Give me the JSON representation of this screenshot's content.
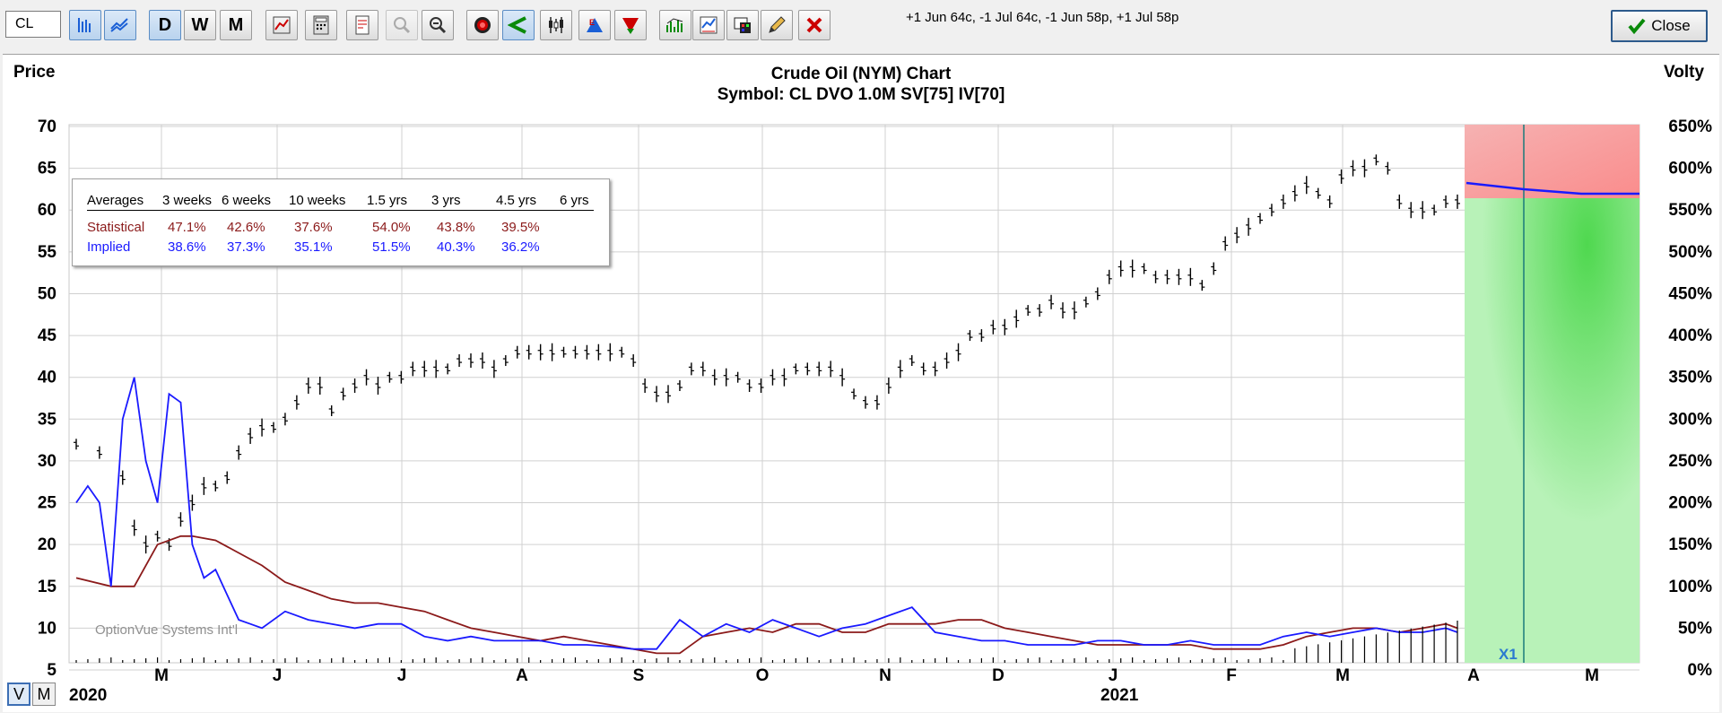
{
  "toolbar": {
    "symbol_value": "CL",
    "buttons": [
      {
        "id": "bars",
        "icon": "bar-chart-icon",
        "active": true
      },
      {
        "id": "lines",
        "icon": "line-chart-icon",
        "active": true
      },
      {
        "id": "daily",
        "label": "D",
        "active": true
      },
      {
        "id": "weekly",
        "label": "W"
      },
      {
        "id": "monthly",
        "label": "M"
      },
      {
        "id": "chart-settings",
        "icon": "chart-settings-icon"
      },
      {
        "id": "calc",
        "icon": "calculator-icon"
      },
      {
        "id": "report",
        "icon": "report-icon"
      },
      {
        "id": "zoom-in",
        "icon": "zoom-in-icon",
        "disabled": true
      },
      {
        "id": "zoom-out",
        "icon": "zoom-out-icon"
      },
      {
        "id": "target",
        "icon": "target-icon"
      },
      {
        "id": "angle",
        "icon": "angle-icon",
        "active": true
      },
      {
        "id": "candles",
        "icon": "candlestick-icon"
      },
      {
        "id": "earnings",
        "icon": "earnings-icon"
      },
      {
        "id": "dividend",
        "icon": "dividend-icon"
      },
      {
        "id": "volume",
        "icon": "volume-icon"
      },
      {
        "id": "study",
        "icon": "study-icon"
      },
      {
        "id": "paint",
        "icon": "paint-icon"
      },
      {
        "id": "pencil",
        "icon": "pencil-icon"
      },
      {
        "id": "delete",
        "icon": "delete-icon"
      }
    ],
    "positions_text": "+1 Jun 64c, -1 Jul 64c, -1 Jun 58p, +1 Jul 58p",
    "close_label": "Close"
  },
  "chart": {
    "title": "Crude Oil (NYM) Chart",
    "subtitle": "Symbol: CL  DVO 1.0M  SV[75]  IV[70]",
    "left_axis_title": "Price",
    "right_axis_title": "Volty",
    "watermark": "OptionVue Systems Int'l",
    "forecast_marker": "X1",
    "year_labels": [
      "2020",
      "2021"
    ],
    "mode_buttons": [
      "V",
      "M"
    ]
  },
  "averages": {
    "header": [
      "Averages",
      "3 weeks",
      "6 weeks",
      "10 weeks",
      "1.5 yrs",
      "3 yrs",
      "4.5 yrs",
      "6 yrs"
    ],
    "statistical": {
      "label": "Statistical",
      "values": [
        "47.1%",
        "42.6%",
        "37.6%",
        "54.0%",
        "43.8%",
        "39.5%",
        ""
      ]
    },
    "implied": {
      "label": "Implied",
      "values": [
        "38.6%",
        "37.3%",
        "35.1%",
        "51.5%",
        "40.3%",
        "36.2%",
        ""
      ]
    },
    "colors": {
      "statistical": "#8b1a1a",
      "implied": "#1a1aff"
    }
  },
  "chart_data": {
    "type": "line",
    "price_axis": {
      "ticks": [
        70,
        65,
        60,
        55,
        50,
        45,
        40,
        35,
        30,
        25,
        20,
        15,
        10,
        5
      ],
      "range": [
        5,
        70
      ]
    },
    "volatility_axis": {
      "ticks": [
        "650%",
        "600%",
        "550%",
        "500%",
        "450%",
        "400%",
        "350%",
        "300%",
        "250%",
        "200%",
        "150%",
        "100%",
        "50%",
        "0%"
      ],
      "range": [
        0,
        650
      ]
    },
    "x_labels": [
      "M",
      "J",
      "J",
      "A",
      "S",
      "O",
      "N",
      "D",
      "J",
      "F",
      "M",
      "A",
      "M"
    ],
    "price_series": {
      "name": "Price",
      "color": "#000000",
      "points": [
        [
          0,
          32
        ],
        [
          2,
          31
        ],
        [
          4,
          28
        ],
        [
          5,
          22
        ],
        [
          6,
          20
        ],
        [
          7,
          21
        ],
        [
          8,
          20
        ],
        [
          9,
          23
        ],
        [
          10,
          25
        ],
        [
          11,
          27
        ],
        [
          12,
          27
        ],
        [
          13,
          28
        ],
        [
          14,
          31
        ],
        [
          15,
          33
        ],
        [
          16,
          34
        ],
        [
          17,
          34
        ],
        [
          18,
          35
        ],
        [
          19,
          37
        ],
        [
          20,
          39
        ],
        [
          21,
          39
        ],
        [
          22,
          36
        ],
        [
          23,
          38
        ],
        [
          24,
          39
        ],
        [
          25,
          40
        ],
        [
          26,
          39
        ],
        [
          27,
          40
        ],
        [
          28,
          40
        ],
        [
          29,
          41
        ],
        [
          30,
          41
        ],
        [
          31,
          41
        ],
        [
          32,
          41
        ],
        [
          33,
          42
        ],
        [
          34,
          42
        ],
        [
          35,
          42
        ],
        [
          36,
          41
        ],
        [
          37,
          42
        ],
        [
          38,
          43
        ],
        [
          39,
          43
        ],
        [
          40,
          43
        ],
        [
          41,
          43
        ],
        [
          42,
          43
        ],
        [
          43,
          43
        ],
        [
          44,
          43
        ],
        [
          45,
          43
        ],
        [
          46,
          43
        ],
        [
          47,
          43
        ],
        [
          48,
          42
        ],
        [
          49,
          39
        ],
        [
          50,
          38
        ],
        [
          51,
          38
        ],
        [
          52,
          39
        ],
        [
          53,
          41
        ],
        [
          54,
          41
        ],
        [
          55,
          40
        ],
        [
          56,
          40
        ],
        [
          57,
          40
        ],
        [
          58,
          39
        ],
        [
          59,
          39
        ],
        [
          60,
          40
        ],
        [
          61,
          40
        ],
        [
          62,
          41
        ],
        [
          63,
          41
        ],
        [
          64,
          41
        ],
        [
          65,
          41
        ],
        [
          66,
          40
        ],
        [
          67,
          38
        ],
        [
          68,
          37
        ],
        [
          69,
          37
        ],
        [
          70,
          39
        ],
        [
          71,
          41
        ],
        [
          72,
          42
        ],
        [
          73,
          41
        ],
        [
          74,
          41
        ],
        [
          75,
          42
        ],
        [
          76,
          43
        ],
        [
          77,
          45
        ],
        [
          78,
          45
        ],
        [
          79,
          46
        ],
        [
          80,
          46
        ],
        [
          81,
          47
        ],
        [
          82,
          48
        ],
        [
          83,
          48
        ],
        [
          84,
          49
        ],
        [
          85,
          48
        ],
        [
          86,
          48
        ],
        [
          87,
          49
        ],
        [
          88,
          50
        ],
        [
          89,
          52
        ],
        [
          90,
          53
        ],
        [
          91,
          53
        ],
        [
          92,
          53
        ],
        [
          93,
          52
        ],
        [
          94,
          52
        ],
        [
          95,
          52
        ],
        [
          96,
          52
        ],
        [
          97,
          51
        ],
        [
          98,
          53
        ],
        [
          99,
          56
        ],
        [
          100,
          57
        ],
        [
          101,
          58
        ],
        [
          102,
          59
        ],
        [
          103,
          60
        ],
        [
          104,
          61
        ],
        [
          105,
          62
        ],
        [
          106,
          63
        ],
        [
          107,
          62
        ],
        [
          108,
          61
        ],
        [
          109,
          64
        ],
        [
          110,
          65
        ],
        [
          111,
          65
        ],
        [
          112,
          66
        ],
        [
          113,
          65
        ],
        [
          114,
          61
        ],
        [
          115,
          60
        ],
        [
          116,
          60
        ],
        [
          117,
          60
        ],
        [
          118,
          61
        ],
        [
          119,
          61
        ]
      ]
    },
    "statistical_vol_series": {
      "name": "Statistical",
      "color": "#8b1a1a",
      "points": [
        [
          0,
          110
        ],
        [
          3,
          100
        ],
        [
          5,
          100
        ],
        [
          7,
          150
        ],
        [
          9,
          160
        ],
        [
          10,
          160
        ],
        [
          12,
          155
        ],
        [
          14,
          140
        ],
        [
          16,
          125
        ],
        [
          18,
          105
        ],
        [
          20,
          95
        ],
        [
          22,
          85
        ],
        [
          24,
          80
        ],
        [
          26,
          80
        ],
        [
          28,
          75
        ],
        [
          30,
          70
        ],
        [
          32,
          60
        ],
        [
          34,
          50
        ],
        [
          36,
          45
        ],
        [
          38,
          40
        ],
        [
          40,
          35
        ],
        [
          42,
          40
        ],
        [
          44,
          35
        ],
        [
          46,
          30
        ],
        [
          48,
          25
        ],
        [
          50,
          20
        ],
        [
          52,
          20
        ],
        [
          54,
          40
        ],
        [
          56,
          45
        ],
        [
          58,
          50
        ],
        [
          60,
          45
        ],
        [
          62,
          55
        ],
        [
          64,
          55
        ],
        [
          66,
          45
        ],
        [
          68,
          45
        ],
        [
          70,
          55
        ],
        [
          72,
          55
        ],
        [
          74,
          55
        ],
        [
          76,
          60
        ],
        [
          78,
          60
        ],
        [
          80,
          50
        ],
        [
          82,
          45
        ],
        [
          84,
          40
        ],
        [
          86,
          35
        ],
        [
          88,
          30
        ],
        [
          90,
          30
        ],
        [
          92,
          30
        ],
        [
          94,
          30
        ],
        [
          96,
          30
        ],
        [
          98,
          25
        ],
        [
          100,
          25
        ],
        [
          102,
          25
        ],
        [
          104,
          30
        ],
        [
          106,
          40
        ],
        [
          108,
          45
        ],
        [
          110,
          50
        ],
        [
          112,
          50
        ],
        [
          114,
          45
        ],
        [
          116,
          50
        ],
        [
          118,
          55
        ],
        [
          119,
          50
        ]
      ]
    },
    "implied_vol_series": {
      "name": "Implied",
      "color": "#1a1aff",
      "points": [
        [
          0,
          200
        ],
        [
          1,
          220
        ],
        [
          2,
          200
        ],
        [
          3,
          100
        ],
        [
          4,
          300
        ],
        [
          5,
          350
        ],
        [
          6,
          250
        ],
        [
          7,
          200
        ],
        [
          8,
          330
        ],
        [
          9,
          320
        ],
        [
          10,
          150
        ],
        [
          11,
          110
        ],
        [
          12,
          120
        ],
        [
          13,
          90
        ],
        [
          14,
          60
        ],
        [
          15,
          55
        ],
        [
          16,
          50
        ],
        [
          18,
          70
        ],
        [
          20,
          60
        ],
        [
          22,
          55
        ],
        [
          24,
          50
        ],
        [
          26,
          55
        ],
        [
          28,
          55
        ],
        [
          30,
          40
        ],
        [
          32,
          35
        ],
        [
          34,
          40
        ],
        [
          36,
          35
        ],
        [
          38,
          35
        ],
        [
          40,
          35
        ],
        [
          42,
          30
        ],
        [
          44,
          30
        ],
        [
          46,
          28
        ],
        [
          48,
          25
        ],
        [
          50,
          25
        ],
        [
          52,
          60
        ],
        [
          54,
          40
        ],
        [
          56,
          55
        ],
        [
          58,
          45
        ],
        [
          60,
          60
        ],
        [
          62,
          50
        ],
        [
          64,
          40
        ],
        [
          66,
          50
        ],
        [
          68,
          55
        ],
        [
          70,
          65
        ],
        [
          72,
          75
        ],
        [
          74,
          45
        ],
        [
          76,
          40
        ],
        [
          78,
          35
        ],
        [
          80,
          35
        ],
        [
          82,
          30
        ],
        [
          84,
          30
        ],
        [
          86,
          30
        ],
        [
          88,
          35
        ],
        [
          90,
          35
        ],
        [
          92,
          30
        ],
        [
          94,
          30
        ],
        [
          96,
          35
        ],
        [
          98,
          30
        ],
        [
          100,
          30
        ],
        [
          102,
          30
        ],
        [
          104,
          40
        ],
        [
          106,
          45
        ],
        [
          108,
          40
        ],
        [
          110,
          45
        ],
        [
          112,
          50
        ],
        [
          114,
          45
        ],
        [
          116,
          45
        ],
        [
          118,
          50
        ],
        [
          119,
          45
        ]
      ]
    },
    "forecast": {
      "implied_vol_start": "580%",
      "implied_vol_end": "560%",
      "zones": [
        "red",
        "green"
      ]
    }
  }
}
